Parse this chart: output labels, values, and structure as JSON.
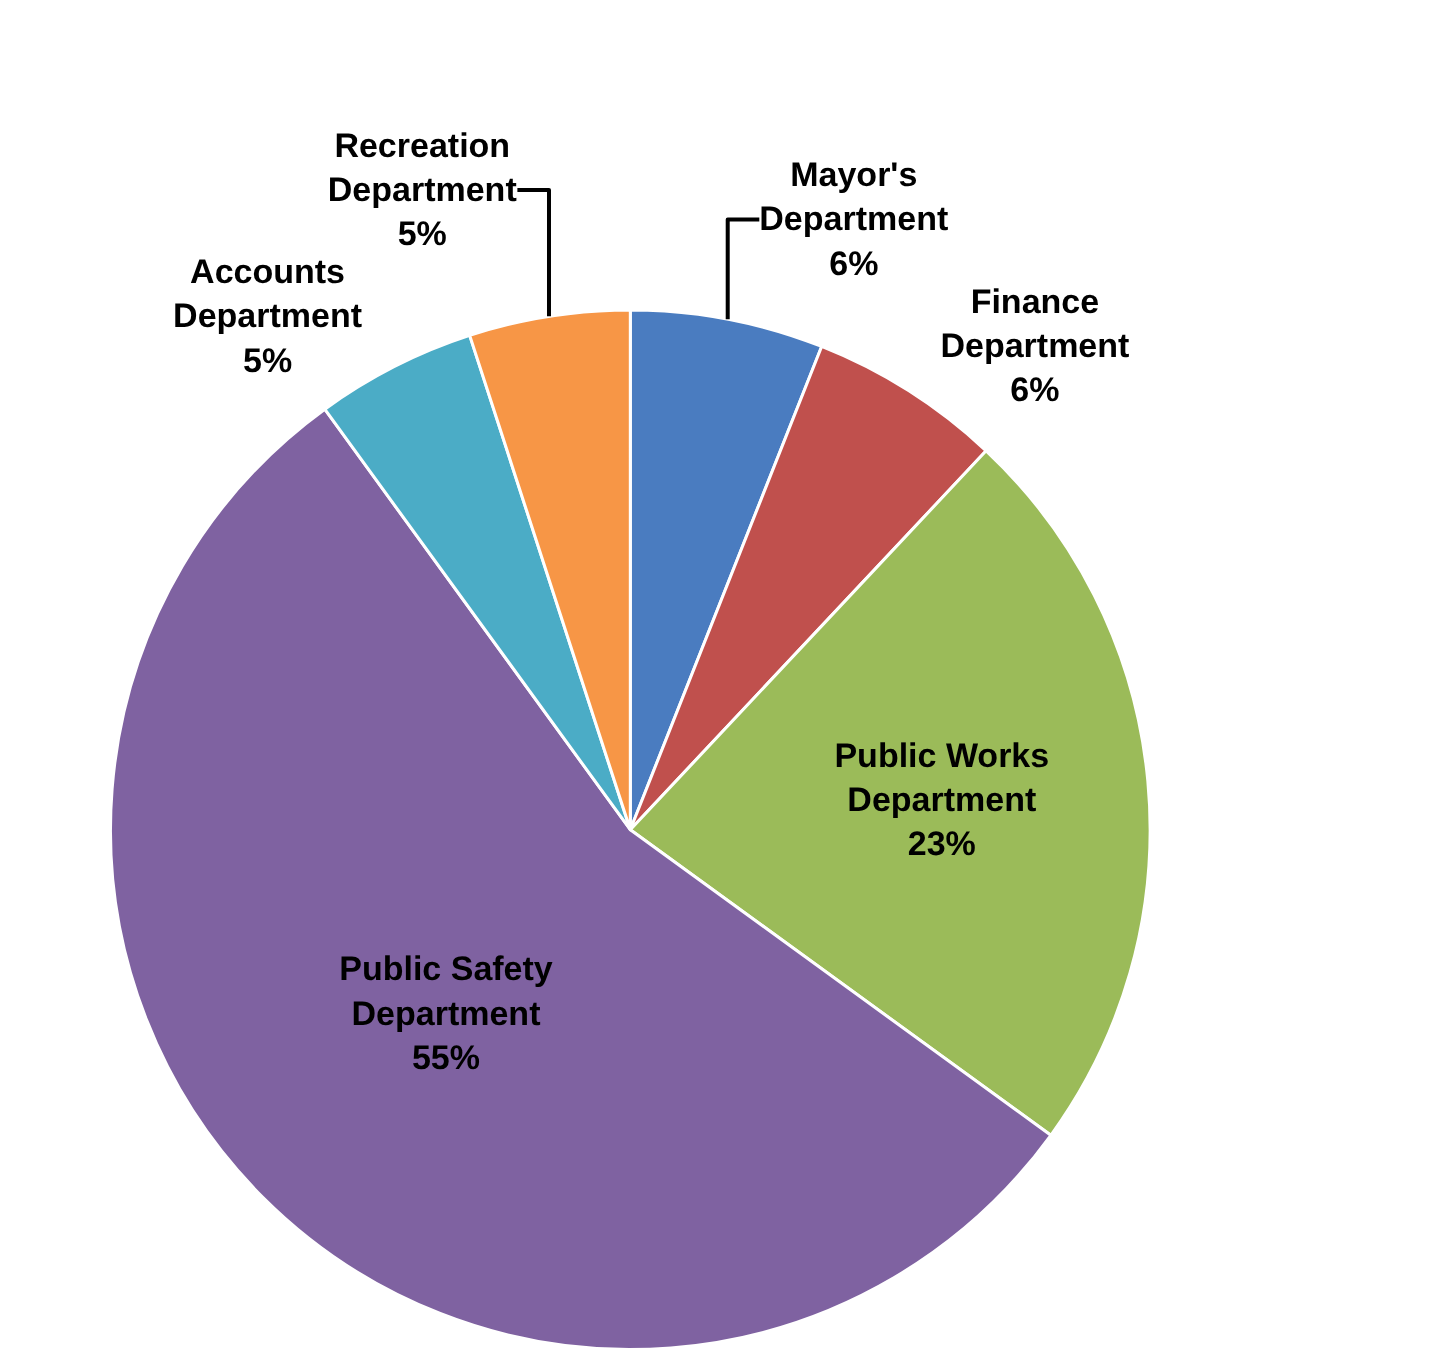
{
  "chart_data": {
    "type": "pie",
    "categories": [
      "Mayor's Department",
      "Finance Department",
      "Public Works Department",
      "Public Safety Department",
      "Accounts Department",
      "Recreation Department"
    ],
    "values": [
      6,
      6,
      23,
      55,
      5,
      5
    ],
    "value_labels": [
      "6%",
      "6%",
      "23%",
      "55%",
      "5%",
      "5%"
    ],
    "colors": [
      "#4a7cc0",
      "#c0504d",
      "#9bbb59",
      "#7f62a1",
      "#4bacc6",
      "#f79646"
    ],
    "legend": false
  }
}
